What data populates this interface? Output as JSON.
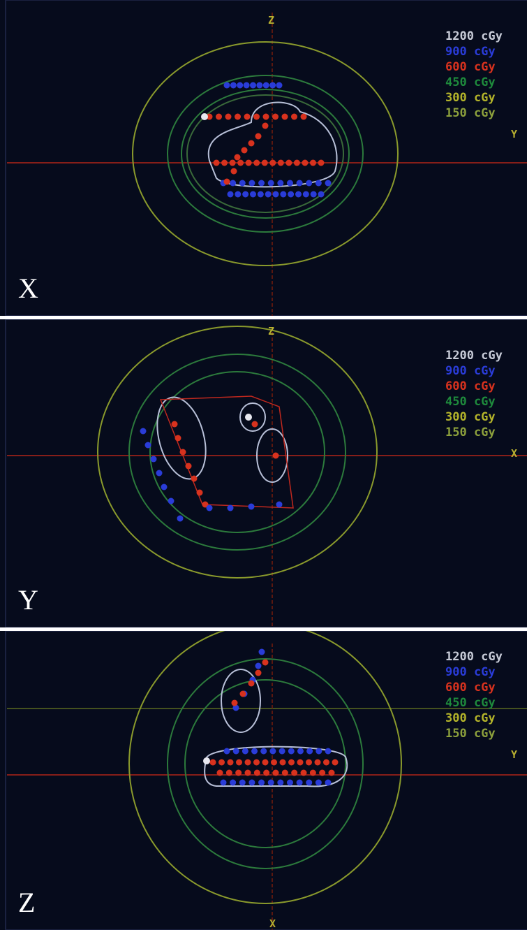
{
  "panels": [
    {
      "label": "X",
      "axis_top": "Z",
      "axis_side": "Y"
    },
    {
      "label": "Y",
      "axis_top": "Z",
      "axis_side": "X"
    },
    {
      "label": "Z",
      "axis_side": "Y",
      "axis_bottom": "X"
    }
  ],
  "legend": [
    {
      "text": "1200 cGy",
      "color": "#c8ccd8"
    },
    {
      "text": "900 cGy",
      "color": "#2a3cd8"
    },
    {
      "text": "600 cGy",
      "color": "#d8321e"
    },
    {
      "text": "450 cGy",
      "color": "#1e8a3c"
    },
    {
      "text": "300 cGy",
      "color": "#b4b42a"
    },
    {
      "text": "150 cGy",
      "color": "#8ca03c"
    }
  ]
}
